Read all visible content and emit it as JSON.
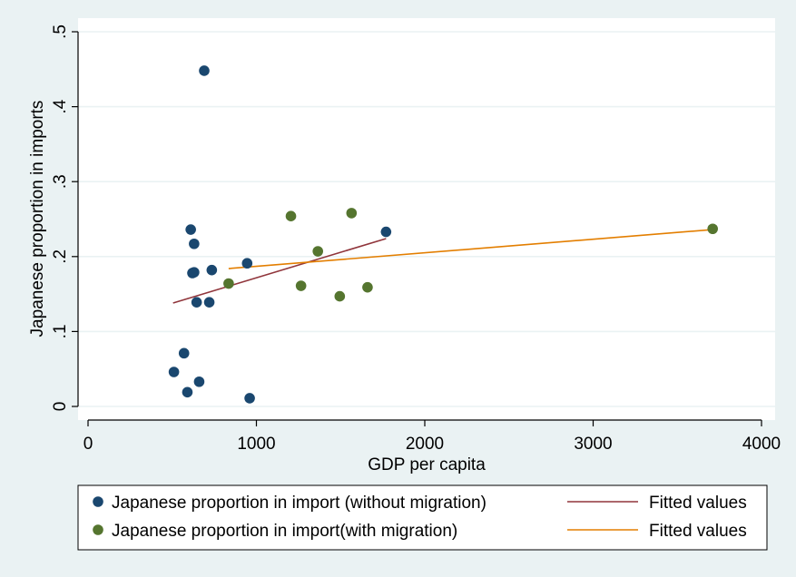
{
  "chart_data": {
    "type": "scatter",
    "xlabel": "GDP per capita",
    "ylabel": "Japanese proportion in imports",
    "xlim": [
      0,
      4000
    ],
    "ylim": [
      0,
      0.5
    ],
    "x_ticks": [
      {
        "value": 0,
        "label": "0"
      },
      {
        "value": 1000,
        "label": "1000"
      },
      {
        "value": 2000,
        "label": "2000"
      },
      {
        "value": 3000,
        "label": "3000"
      },
      {
        "value": 4000,
        "label": "4000"
      }
    ],
    "y_ticks": [
      {
        "value": 0,
        "label": "0"
      },
      {
        "value": 0.1,
        "label": ".1"
      },
      {
        "value": 0.2,
        "label": ".2"
      },
      {
        "value": 0.3,
        "label": ".3"
      },
      {
        "value": 0.4,
        "label": ".4"
      },
      {
        "value": 0.5,
        "label": ".5"
      }
    ],
    "grid": "horizontal",
    "legend_position": "bottom",
    "series": [
      {
        "name": "Japanese proportion in import (without migration)",
        "kind": "scatter",
        "color": "#1a476f",
        "points": [
          [
            690,
            0.448
          ],
          [
            610,
            0.236
          ],
          [
            630,
            0.217
          ],
          [
            620,
            0.178
          ],
          [
            630,
            0.179
          ],
          [
            735,
            0.182
          ],
          [
            945,
            0.191
          ],
          [
            645,
            0.139
          ],
          [
            720,
            0.139
          ],
          [
            570,
            0.071
          ],
          [
            510,
            0.046
          ],
          [
            660,
            0.033
          ],
          [
            590,
            0.019
          ],
          [
            960,
            0.011
          ],
          [
            1770,
            0.233
          ]
        ]
      },
      {
        "name": "Japanese proportion in import(with migration)",
        "kind": "scatter",
        "color": "#55752f",
        "points": [
          [
            1205,
            0.254
          ],
          [
            1565,
            0.258
          ],
          [
            1365,
            0.207
          ],
          [
            835,
            0.164
          ],
          [
            1265,
            0.161
          ],
          [
            1495,
            0.147
          ],
          [
            1660,
            0.159
          ],
          [
            3710,
            0.237
          ]
        ]
      },
      {
        "name": "Fitted values",
        "kind": "line",
        "color": "#90353b",
        "points": [
          [
            505,
            0.138
          ],
          [
            1770,
            0.224
          ]
        ]
      },
      {
        "name": "Fitted values",
        "kind": "line",
        "color": "#e37e00",
        "points": [
          [
            835,
            0.184
          ],
          [
            3710,
            0.236
          ]
        ]
      }
    ]
  }
}
